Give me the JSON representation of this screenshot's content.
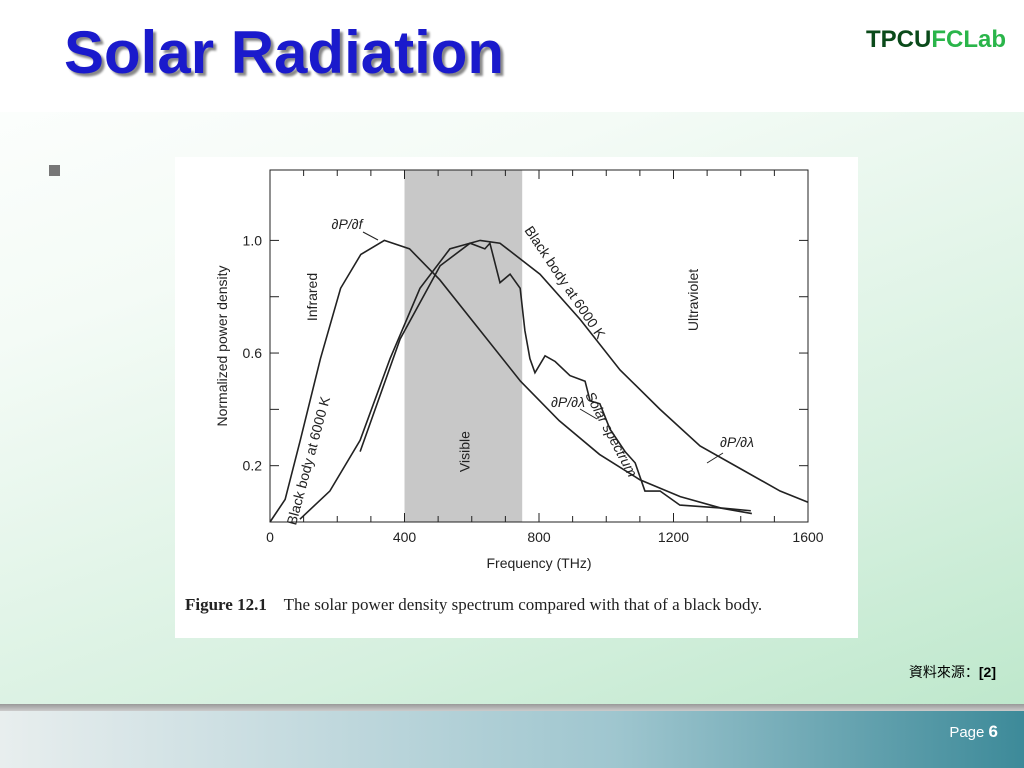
{
  "slide": {
    "title": "Solar Radiation",
    "logo": [
      "TPCU",
      "FCLab"
    ],
    "figure_number": "Figure 12.1",
    "caption": "The solar power density spectrum compared with that of a black body.",
    "source_label": "資料來源：",
    "source_ref": "[2]",
    "page_label": "Page",
    "page_number": 6
  },
  "chart_data": {
    "type": "line",
    "xlabel": "Frequency (THz)",
    "ylabel": "Normalized power density",
    "xlim": [
      0,
      1600
    ],
    "ylim": [
      0,
      1.25
    ],
    "xticks": [
      0,
      400,
      800,
      1200,
      1600
    ],
    "yticks": [
      0.2,
      0.6,
      {
        "value": 1,
        "label": "1.0"
      }
    ],
    "bands": [
      {
        "from": 400,
        "to": 750,
        "label": "Visible",
        "color": "#c8c8c8"
      }
    ],
    "annotations": [
      "Infrared",
      "Ultraviolet",
      "Black body at 6000 K",
      "Black body at 6000 K",
      "∂P/∂λ"
    ],
    "series": [
      {
        "name": "∂P/∂f",
        "color": "#222222",
        "x": [
          0,
          45,
          90,
          150,
          210,
          270,
          340,
          415,
          505,
          625,
          745,
          860,
          980,
          1100,
          1220,
          1340,
          1430
        ],
        "y": [
          0,
          0.08,
          0.29,
          0.58,
          0.83,
          0.95,
          1.0,
          0.97,
          0.86,
          0.68,
          0.5,
          0.36,
          0.24,
          0.15,
          0.09,
          0.05,
          0.04
        ]
      },
      {
        "name": "∂P/∂λ",
        "color": "#222222",
        "x": [
          89,
          178,
          268,
          357,
          446,
          535,
          625,
          684,
          803,
          922,
          1041,
          1160,
          1279,
          1398,
          1517,
          1600
        ],
        "y": [
          0.01,
          0.11,
          0.29,
          0.58,
          0.83,
          0.97,
          1.0,
          0.99,
          0.88,
          0.72,
          0.54,
          0.4,
          0.27,
          0.19,
          0.11,
          0.07
        ]
      },
      {
        "name": "Solar spectrum",
        "color": "#222222",
        "x": [
          268,
          387,
          506,
          595,
          639,
          654,
          684,
          714,
          744,
          758,
          773,
          788,
          818,
          848,
          892,
          937,
          952,
          981,
          1011,
          1056,
          1086,
          1115,
          1160,
          1219,
          1338,
          1433
        ],
        "y": [
          0.25,
          0.65,
          0.91,
          0.99,
          0.97,
          0.99,
          0.85,
          0.88,
          0.83,
          0.68,
          0.58,
          0.53,
          0.59,
          0.57,
          0.52,
          0.5,
          0.43,
          0.42,
          0.33,
          0.25,
          0.21,
          0.11,
          0.11,
          0.06,
          0.05,
          0.03
        ]
      }
    ]
  }
}
